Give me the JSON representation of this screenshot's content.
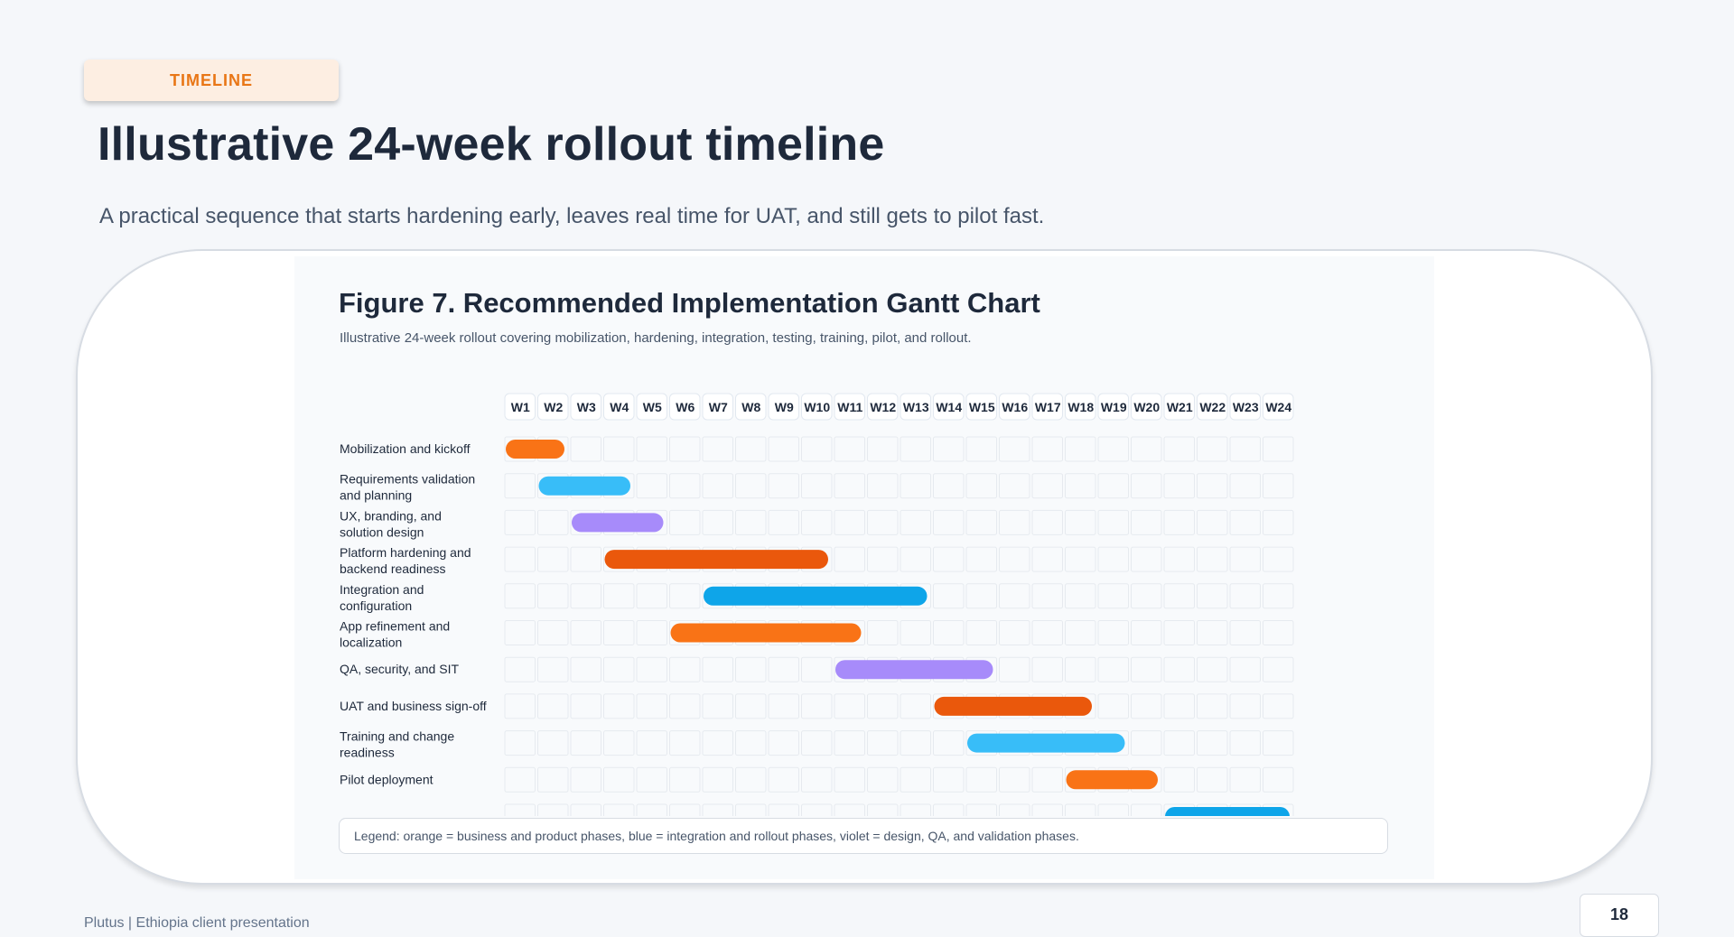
{
  "header": {
    "badge": "TIMELINE",
    "title": "Illustrative 24-week rollout timeline",
    "subtitle": "A practical sequence that starts hardening early, leaves real time for UAT, and still gets to pilot fast."
  },
  "figure": {
    "title": "Figure 7. Recommended Implementation Gantt Chart",
    "subtitle": "Illustrative 24-week rollout covering mobilization, hardening, integration, testing, training, pilot, and rollout.",
    "legend": "Legend: orange = business and product phases, blue = integration and rollout phases, violet = design, QA, and validation phases."
  },
  "colors": {
    "orange": "#f97316",
    "dark_orange": "#ea580c",
    "light_blue": "#38bdf8",
    "blue": "#0ea5e9",
    "violet": "#a78bfa"
  },
  "chart_data": {
    "type": "gantt",
    "weeks": [
      "W1",
      "W2",
      "W3",
      "W4",
      "W5",
      "W6",
      "W7",
      "W8",
      "W9",
      "W10",
      "W11",
      "W12",
      "W13",
      "W14",
      "W15",
      "W16",
      "W17",
      "W18",
      "W19",
      "W20",
      "W21",
      "W22",
      "W23",
      "W24"
    ],
    "tasks": [
      {
        "label": [
          "Mobilization and kickoff"
        ],
        "start": 1,
        "end": 2,
        "color": "orange"
      },
      {
        "label": [
          "Requirements validation",
          "and planning"
        ],
        "start": 2,
        "end": 4,
        "color": "light_blue"
      },
      {
        "label": [
          "UX, branding, and",
          "solution design"
        ],
        "start": 3,
        "end": 5,
        "color": "violet"
      },
      {
        "label": [
          "Platform hardening and",
          "backend readiness"
        ],
        "start": 4,
        "end": 10,
        "color": "dark_orange"
      },
      {
        "label": [
          "Integration and",
          "configuration"
        ],
        "start": 7,
        "end": 13,
        "color": "blue"
      },
      {
        "label": [
          "App refinement and",
          "localization"
        ],
        "start": 6,
        "end": 11,
        "color": "orange"
      },
      {
        "label": [
          "QA, security, and SIT"
        ],
        "start": 11,
        "end": 15,
        "color": "violet"
      },
      {
        "label": [
          "UAT and business sign-off"
        ],
        "start": 14,
        "end": 18,
        "color": "dark_orange"
      },
      {
        "label": [
          "Training and change",
          "readiness"
        ],
        "start": 15,
        "end": 19,
        "color": "light_blue"
      },
      {
        "label": [
          "Pilot deployment"
        ],
        "start": 18,
        "end": 20,
        "color": "orange"
      },
      {
        "label": [],
        "start": 21,
        "end": 24,
        "color": "blue"
      }
    ]
  },
  "footer": {
    "text": "Plutus | Ethiopia client presentation",
    "page_number": "18"
  }
}
